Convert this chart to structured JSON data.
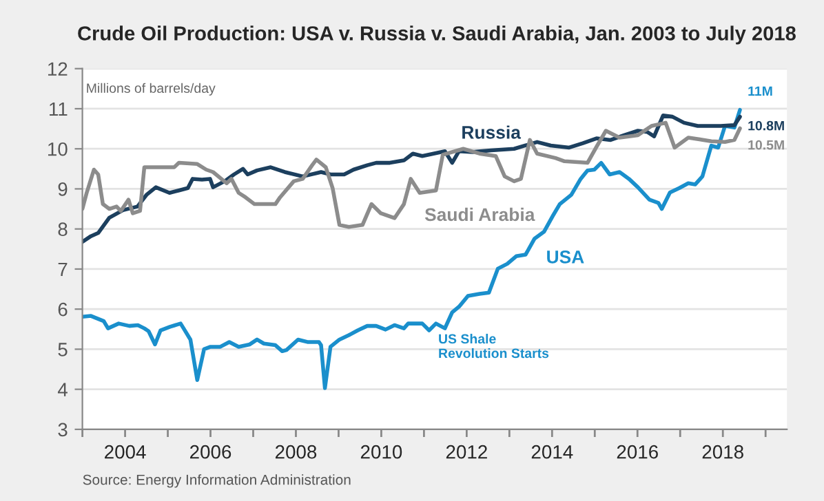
{
  "chart_data": {
    "type": "line",
    "title": "Crude Oil Production: USA v. Russia v. Saudi Arabia, Jan. 2003 to July 2018",
    "ylabel": "Millions of barrels/day",
    "xlim": [
      2003,
      2019.5
    ],
    "ylim": [
      3,
      12
    ],
    "yticks": [
      3,
      4,
      5,
      6,
      7,
      8,
      9,
      10,
      11,
      12
    ],
    "xticks": [
      {
        "value": 2003,
        "label": null
      },
      2004,
      {
        "value": 2005,
        "label": null
      },
      2006,
      {
        "value": 2007,
        "label": null
      },
      2008,
      {
        "value": 2009,
        "label": null
      },
      2010,
      {
        "value": 2011,
        "label": null
      },
      2012,
      {
        "value": 2013,
        "label": null
      },
      2014,
      {
        "value": 2015,
        "label": null
      },
      2016,
      {
        "value": 2017,
        "label": null
      },
      2018,
      {
        "value": 2019,
        "label": null
      }
    ],
    "grid": "y",
    "legend": false,
    "marker": "none",
    "line_style": "solid",
    "series": [
      {
        "name": "USA",
        "color": "#1a8fcc",
        "x": [
          2003.0,
          2003.2,
          2003.5,
          2003.6,
          2003.85,
          2004.1,
          2004.3,
          2004.45,
          2004.55,
          2004.7,
          2004.83,
          2005.05,
          2005.3,
          2005.37,
          2005.53,
          2005.69,
          2005.85,
          2006.0,
          2006.23,
          2006.44,
          2006.66,
          2006.92,
          2007.09,
          2007.25,
          2007.52,
          2007.68,
          2007.78,
          2008.05,
          2008.27,
          2008.54,
          2008.59,
          2008.68,
          2008.81,
          2009.02,
          2009.24,
          2009.45,
          2009.67,
          2009.88,
          2010.1,
          2010.31,
          2010.53,
          2010.63,
          2010.96,
          2011.12,
          2011.28,
          2011.49,
          2011.66,
          2011.82,
          2012.03,
          2012.3,
          2012.52,
          2012.73,
          2012.95,
          2013.16,
          2013.38,
          2013.59,
          2013.81,
          2014.02,
          2014.18,
          2014.45,
          2014.67,
          2014.83,
          2014.99,
          2015.15,
          2015.35,
          2015.58,
          2015.8,
          2016.01,
          2016.28,
          2016.49,
          2016.57,
          2016.76,
          2016.98,
          2017.19,
          2017.35,
          2017.52,
          2017.73,
          2017.89,
          2018.05,
          2018.27,
          2018.4
        ],
        "values": [
          5.81,
          5.83,
          5.7,
          5.52,
          5.64,
          5.58,
          5.6,
          5.52,
          5.45,
          5.12,
          5.47,
          5.56,
          5.64,
          5.52,
          5.24,
          4.23,
          5.0,
          5.06,
          5.06,
          5.18,
          5.06,
          5.12,
          5.24,
          5.14,
          5.1,
          4.95,
          4.98,
          5.24,
          5.18,
          5.18,
          5.1,
          4.03,
          5.06,
          5.24,
          5.35,
          5.47,
          5.58,
          5.58,
          5.49,
          5.6,
          5.52,
          5.64,
          5.64,
          5.47,
          5.64,
          5.52,
          5.92,
          6.06,
          6.33,
          6.38,
          6.41,
          7.01,
          7.13,
          7.32,
          7.36,
          7.76,
          7.93,
          8.33,
          8.62,
          8.85,
          9.25,
          9.46,
          9.48,
          9.65,
          9.36,
          9.42,
          9.25,
          9.04,
          8.73,
          8.65,
          8.5,
          8.91,
          9.02,
          9.14,
          9.11,
          9.31,
          10.08,
          10.03,
          10.57,
          10.53,
          10.97
        ],
        "value_labels": [
          null,
          null,
          null,
          null,
          null,
          null,
          null,
          null,
          null,
          null,
          null,
          null,
          null,
          null,
          null,
          null,
          null,
          null,
          null,
          null,
          null,
          null,
          null,
          null,
          null,
          null,
          null,
          null,
          null,
          null,
          null,
          null,
          null,
          null,
          null,
          null,
          null,
          null,
          null,
          null,
          null,
          null,
          null,
          null,
          null,
          null,
          null,
          null,
          null,
          null,
          null,
          null,
          null,
          null,
          null,
          null,
          null,
          null,
          null,
          null,
          null,
          null,
          null,
          null,
          null,
          null,
          null,
          null,
          null,
          null,
          null,
          null,
          null,
          null,
          null,
          null,
          null,
          null,
          null,
          null,
          "11M"
        ]
      },
      {
        "name": "Russia",
        "color": "#1c3f5e",
        "x": [
          2003.0,
          2003.2,
          2003.37,
          2003.63,
          2003.95,
          2004.29,
          2004.5,
          2004.72,
          2005.04,
          2005.26,
          2005.47,
          2005.58,
          2005.8,
          2005.99,
          2006.06,
          2006.33,
          2006.55,
          2006.76,
          2006.87,
          2007.09,
          2007.41,
          2007.74,
          2008.16,
          2008.59,
          2008.81,
          2009.13,
          2009.35,
          2009.67,
          2009.88,
          2010.2,
          2010.53,
          2010.74,
          2010.96,
          2011.49,
          2011.66,
          2011.82,
          2012.14,
          2012.57,
          2013.11,
          2013.65,
          2013.97,
          2014.4,
          2014.72,
          2015.04,
          2015.37,
          2015.69,
          2016.01,
          2016.23,
          2016.39,
          2016.6,
          2016.82,
          2017.09,
          2017.41,
          2017.95,
          2018.27,
          2018.4
        ],
        "values": [
          7.68,
          7.82,
          7.9,
          8.28,
          8.47,
          8.56,
          8.85,
          9.04,
          8.9,
          8.96,
          9.02,
          9.25,
          9.23,
          9.25,
          9.04,
          9.19,
          9.36,
          9.5,
          9.36,
          9.46,
          9.54,
          9.42,
          9.31,
          9.42,
          9.36,
          9.36,
          9.48,
          9.59,
          9.65,
          9.65,
          9.71,
          9.88,
          9.82,
          9.94,
          9.65,
          9.94,
          9.92,
          9.96,
          10.0,
          10.17,
          10.08,
          10.03,
          10.14,
          10.26,
          10.22,
          10.34,
          10.45,
          10.42,
          10.31,
          10.83,
          10.8,
          10.65,
          10.57,
          10.57,
          10.59,
          10.8
        ],
        "value_labels": [
          null,
          null,
          null,
          null,
          null,
          null,
          null,
          null,
          null,
          null,
          null,
          null,
          null,
          null,
          null,
          null,
          null,
          null,
          null,
          null,
          null,
          null,
          null,
          null,
          null,
          null,
          null,
          null,
          null,
          null,
          null,
          null,
          null,
          null,
          null,
          null,
          null,
          null,
          null,
          null,
          null,
          null,
          null,
          null,
          null,
          null,
          null,
          null,
          null,
          null,
          null,
          null,
          null,
          null,
          null,
          "10.8M"
        ]
      },
      {
        "name": "Saudi Arabia",
        "color": "#8c8c8c",
        "x": [
          2003.0,
          2003.1,
          2003.27,
          2003.37,
          2003.48,
          2003.63,
          2003.8,
          2003.9,
          2004.08,
          2004.18,
          2004.35,
          2004.45,
          2004.72,
          2005.15,
          2005.26,
          2005.69,
          2005.9,
          2006.06,
          2006.38,
          2006.49,
          2006.66,
          2006.82,
          2007.03,
          2007.52,
          2007.63,
          2007.95,
          2008.16,
          2008.38,
          2008.48,
          2008.7,
          2008.86,
          2009.02,
          2009.24,
          2009.56,
          2009.77,
          2009.99,
          2010.31,
          2010.53,
          2010.69,
          2010.9,
          2011.28,
          2011.44,
          2011.92,
          2012.3,
          2012.68,
          2012.89,
          2013.11,
          2013.27,
          2013.48,
          2013.65,
          2014.08,
          2014.29,
          2014.83,
          2015.04,
          2015.26,
          2015.58,
          2016.01,
          2016.33,
          2016.66,
          2016.87,
          2017.19,
          2017.73,
          2018.05,
          2018.27,
          2018.4
        ],
        "values": [
          8.5,
          8.9,
          9.48,
          9.36,
          8.62,
          8.5,
          8.56,
          8.45,
          8.73,
          8.39,
          8.45,
          9.54,
          9.54,
          9.54,
          9.65,
          9.62,
          9.48,
          9.42,
          9.14,
          9.25,
          8.9,
          8.79,
          8.62,
          8.62,
          8.79,
          9.19,
          9.25,
          9.59,
          9.73,
          9.54,
          9.02,
          8.1,
          8.05,
          8.1,
          8.62,
          8.39,
          8.27,
          8.62,
          9.25,
          8.9,
          8.96,
          9.85,
          10.0,
          9.88,
          9.82,
          9.31,
          9.19,
          9.25,
          10.22,
          9.88,
          9.77,
          9.69,
          9.65,
          10.05,
          10.45,
          10.28,
          10.34,
          10.57,
          10.65,
          10.03,
          10.28,
          10.19,
          10.17,
          10.22,
          10.51
        ],
        "value_labels": [
          null,
          null,
          null,
          null,
          null,
          null,
          null,
          null,
          null,
          null,
          null,
          null,
          null,
          null,
          null,
          null,
          null,
          null,
          null,
          null,
          null,
          null,
          null,
          null,
          null,
          null,
          null,
          null,
          null,
          null,
          null,
          null,
          null,
          null,
          null,
          null,
          null,
          null,
          null,
          null,
          null,
          null,
          null,
          null,
          null,
          null,
          null,
          null,
          null,
          null,
          null,
          null,
          null,
          null,
          null,
          null,
          null,
          null,
          null,
          null,
          null,
          null,
          null,
          null,
          "10.5M"
        ]
      }
    ],
    "annotations": [
      "US Shale\nRevolution Starts",
      "Source: Energy Information Administration"
    ]
  }
}
